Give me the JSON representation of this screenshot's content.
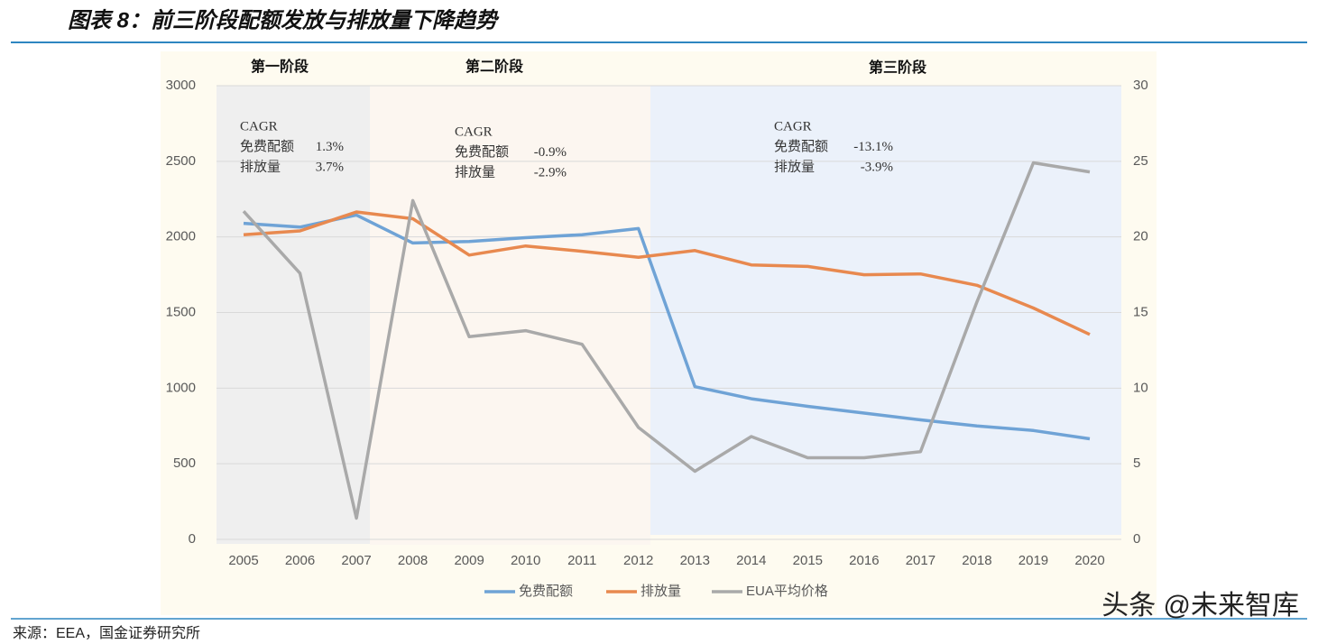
{
  "chart_data": {
    "type": "line",
    "title": "图表 8：前三阶段配额发放与排放量下降趋势",
    "source": "来源：EEA，国金证券研究所",
    "watermark": "头条 @未来智库",
    "categories": [
      "2005",
      "2006",
      "2007",
      "2008",
      "2009",
      "2010",
      "2011",
      "2012",
      "2013",
      "2014",
      "2015",
      "2016",
      "2017",
      "2018",
      "2019",
      "2020"
    ],
    "series": [
      {
        "name": "免费配额",
        "color": "#6fa3d6",
        "values": [
          2090,
          2065,
          2145,
          1960,
          1970,
          1995,
          2015,
          2055,
          1010,
          930,
          880,
          835,
          790,
          750,
          720,
          665
        ]
      },
      {
        "name": "排放量",
        "color": "#e8894f",
        "values": [
          2015,
          2040,
          2165,
          2120,
          1880,
          1940,
          1905,
          1865,
          1910,
          1815,
          1805,
          1750,
          1755,
          1680,
          1530,
          1355
        ]
      },
      {
        "name": "EUA平均价格",
        "color": "#a9a9a9",
        "axis": "y2",
        "values": [
          21.7,
          17.6,
          1.4,
          22.4,
          13.4,
          13.8,
          12.9,
          7.4,
          4.5,
          6.8,
          5.4,
          5.4,
          5.8,
          15.7,
          24.9,
          24.3
        ]
      }
    ],
    "ylim": [
      0,
      3000
    ],
    "yticks": [
      0,
      500,
      1000,
      1500,
      2000,
      2500,
      3000
    ],
    "y2lim": [
      0,
      30
    ],
    "y2ticks": [
      0,
      5,
      10,
      15,
      20,
      25,
      30
    ],
    "grid": true,
    "legend": "bottom",
    "phases": [
      {
        "name": "第一阶段",
        "color": "#efefef",
        "cagr_title": "CAGR",
        "items": [
          {
            "label": "免费配额",
            "value": "1.3%"
          },
          {
            "label": "排放量",
            "value": "3.7%"
          }
        ]
      },
      {
        "name": "第二阶段",
        "color": "#fcf6f0",
        "cagr_title": "CAGR",
        "items": [
          {
            "label": "免费配额",
            "value": "-0.9%"
          },
          {
            "label": "排放量",
            "value": "-2.9%"
          }
        ]
      },
      {
        "name": "第三阶段",
        "color": "#ebf1fa",
        "cagr_title": "CAGR",
        "items": [
          {
            "label": "免费配额",
            "value": "-13.1%"
          },
          {
            "label": "排放量",
            "value": "-3.9%"
          }
        ]
      }
    ]
  }
}
